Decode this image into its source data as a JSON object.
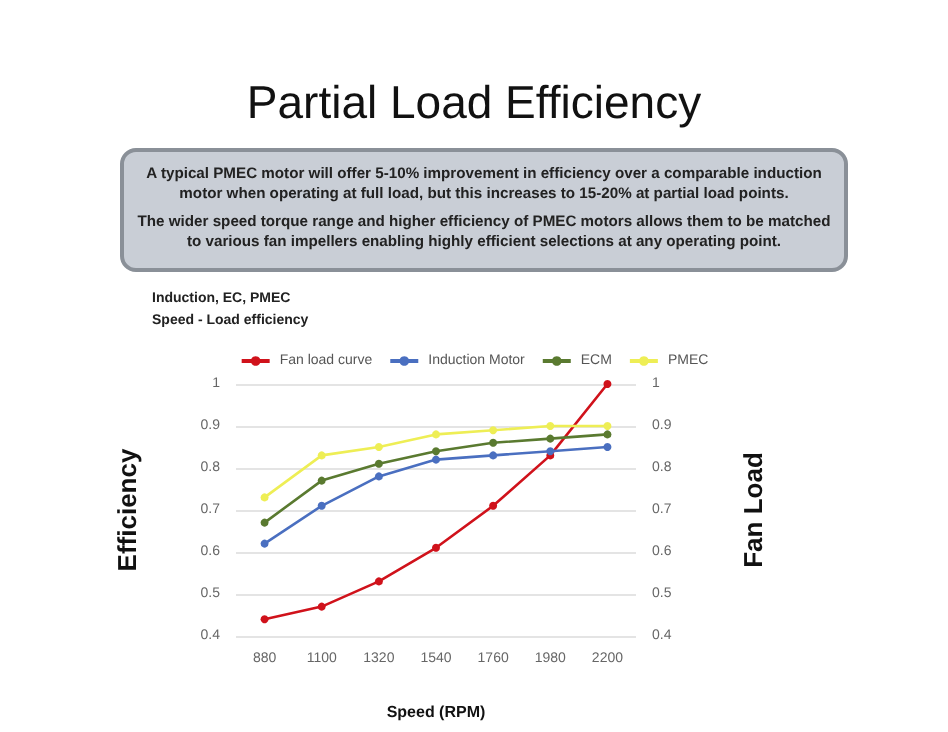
{
  "chart_data": {
    "type": "line",
    "title": "Partial Load Efficiency",
    "subtitle": "Induction, EC, PMEC\nSpeed - Load efficiency",
    "annotations": [
      "A typical PMEC motor will offer 5-10% improvement in efficiency over a comparable induction motor when operating at full load, but this increases to 15-20% at partial load points.",
      "The wider speed torque range and higher efficiency of PMEC motors allows them to be matched to various fan impellers enabling highly efficient selections at any operating point."
    ],
    "xlabel": "Speed (RPM)",
    "ylabel": "Efficiency",
    "y2label": "Fan Load",
    "categories": [
      "880",
      "1100",
      "1320",
      "1540",
      "1760",
      "1980",
      "2200"
    ],
    "series": [
      {
        "name": "Fan load curve",
        "color": "#d0121b",
        "axis": "y2",
        "values": [
          0.44,
          0.47,
          0.53,
          0.61,
          0.71,
          0.83,
          1.0
        ]
      },
      {
        "name": "Induction Motor",
        "color": "#4a6fc0",
        "values": [
          0.62,
          0.71,
          0.78,
          0.82,
          0.83,
          0.84,
          0.85
        ]
      },
      {
        "name": "ECM",
        "color": "#5a7a30",
        "values": [
          0.67,
          0.77,
          0.81,
          0.84,
          0.86,
          0.87,
          0.88
        ]
      },
      {
        "name": "PMEC",
        "color": "#eeee55",
        "values": [
          0.73,
          0.83,
          0.85,
          0.88,
          0.89,
          0.9,
          0.9
        ]
      }
    ],
    "ylim": [
      0.4,
      1
    ],
    "yticks": [
      0.4,
      0.5,
      0.6,
      0.7,
      0.8,
      0.9,
      1
    ],
    "y2lim": [
      0.4,
      1
    ],
    "y2ticks": [
      0.4,
      0.5,
      0.6,
      0.7,
      0.8,
      0.9,
      1
    ],
    "grid": "y",
    "legend": "top",
    "marker": "circle",
    "line_style": "solid"
  }
}
